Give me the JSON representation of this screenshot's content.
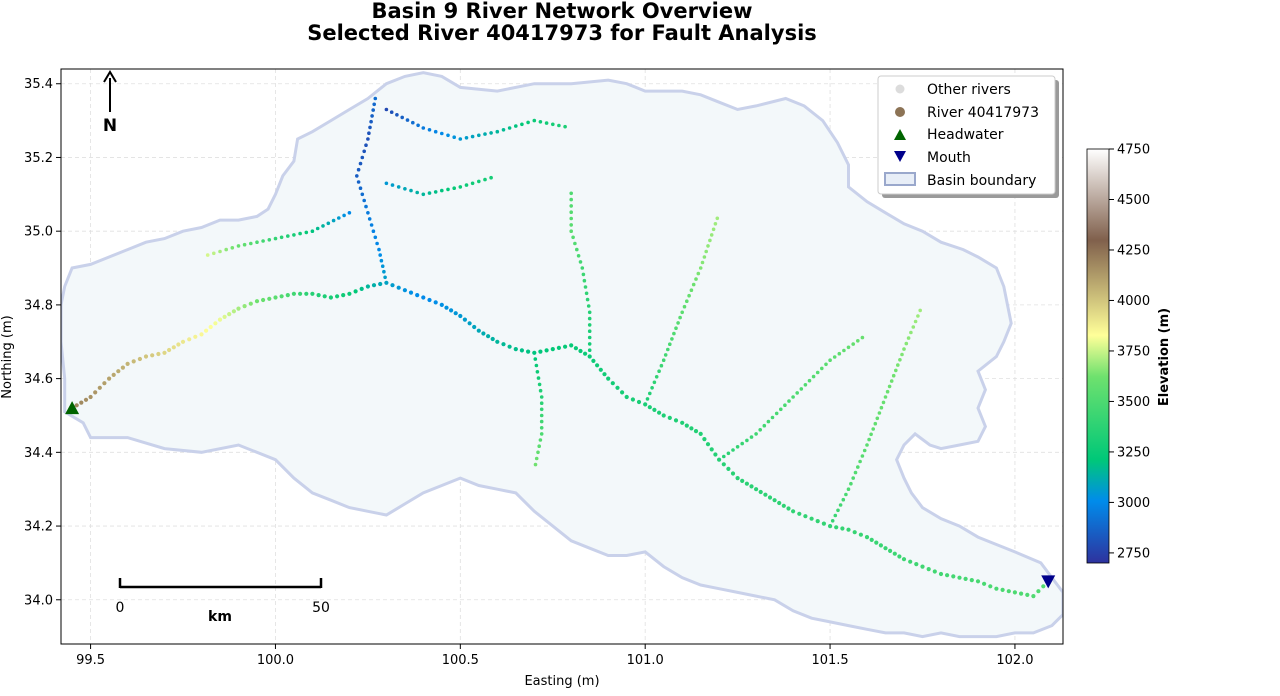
{
  "chart_data": {
    "type": "scatter",
    "title": "Basin 9 River Network Overview",
    "subtitle": "Selected River 40417973 for Fault Analysis",
    "xlabel": "Easting (m)",
    "ylabel": "Northing (m)",
    "xlim": [
      99.42,
      102.13
    ],
    "ylim": [
      33.88,
      35.44
    ],
    "xticks": [
      99.5,
      100.0,
      100.5,
      101.0,
      101.5,
      102.0
    ],
    "xtick_labels": [
      "99.5",
      "100.0",
      "100.5",
      "101.0",
      "101.5",
      "102.0"
    ],
    "yticks": [
      34.0,
      34.2,
      34.4,
      34.6,
      34.8,
      35.0,
      35.2,
      35.4
    ],
    "ytick_labels": [
      "34.0",
      "34.2",
      "34.4",
      "34.6",
      "34.8",
      "35.0",
      "35.2",
      "35.4"
    ],
    "grid": true,
    "legend_position": "top-right",
    "legend": [
      {
        "label": "Other rivers",
        "marker": "circle",
        "color": "#dcdcdc"
      },
      {
        "label": "River 40417973",
        "marker": "circle",
        "color": "#8c7355"
      },
      {
        "label": "Headwater",
        "marker": "triangle-up",
        "color": "#006400"
      },
      {
        "label": "Mouth",
        "marker": "triangle-down",
        "color": "#00008b"
      },
      {
        "label": "Basin boundary",
        "marker": "patch",
        "color": "#e8eef7",
        "edge": "#9aa8cc"
      }
    ],
    "colorbar": {
      "label": "Elevation (m)",
      "range": [
        2700,
        4750
      ],
      "ticks": [
        2750,
        3000,
        3250,
        3500,
        3750,
        4000,
        4250,
        4500,
        4750
      ],
      "tick_labels": [
        "2750",
        "3000",
        "3250",
        "3500",
        "3750",
        "4000",
        "4250",
        "4500",
        "4750"
      ],
      "colormap": "terrain"
    },
    "headwater": {
      "x": 99.45,
      "y": 34.52
    },
    "mouth": {
      "x": 102.09,
      "y": 34.05
    },
    "north_arrow_label": "N",
    "scale_bar": {
      "start_label": "0",
      "end_label": "50",
      "unit_label": "km"
    },
    "basin_boundary": [
      [
        99.43,
        34.51
      ],
      [
        99.48,
        34.48
      ],
      [
        99.5,
        34.44
      ],
      [
        99.6,
        34.44
      ],
      [
        99.7,
        34.41
      ],
      [
        99.8,
        34.4
      ],
      [
        99.9,
        34.42
      ],
      [
        100.0,
        34.38
      ],
      [
        100.05,
        34.33
      ],
      [
        100.1,
        34.29
      ],
      [
        100.15,
        34.27
      ],
      [
        100.2,
        34.25
      ],
      [
        100.25,
        34.24
      ],
      [
        100.3,
        34.23
      ],
      [
        100.35,
        34.26
      ],
      [
        100.4,
        34.29
      ],
      [
        100.45,
        34.31
      ],
      [
        100.5,
        34.33
      ],
      [
        100.55,
        34.31
      ],
      [
        100.6,
        34.3
      ],
      [
        100.65,
        34.29
      ],
      [
        100.7,
        34.24
      ],
      [
        100.75,
        34.2
      ],
      [
        100.8,
        34.16
      ],
      [
        100.85,
        34.14
      ],
      [
        100.9,
        34.12
      ],
      [
        100.95,
        34.12
      ],
      [
        101.0,
        34.13
      ],
      [
        101.05,
        34.09
      ],
      [
        101.1,
        34.06
      ],
      [
        101.15,
        34.04
      ],
      [
        101.2,
        34.03
      ],
      [
        101.25,
        34.02
      ],
      [
        101.3,
        34.01
      ],
      [
        101.35,
        34.0
      ],
      [
        101.4,
        33.97
      ],
      [
        101.45,
        33.95
      ],
      [
        101.5,
        33.94
      ],
      [
        101.55,
        33.93
      ],
      [
        101.6,
        33.92
      ],
      [
        101.65,
        33.91
      ],
      [
        101.7,
        33.91
      ],
      [
        101.75,
        33.9
      ],
      [
        101.8,
        33.91
      ],
      [
        101.85,
        33.9
      ],
      [
        101.9,
        33.9
      ],
      [
        101.95,
        33.9
      ],
      [
        102.0,
        33.91
      ],
      [
        102.05,
        33.91
      ],
      [
        102.1,
        33.93
      ],
      [
        102.13,
        33.96
      ],
      [
        102.13,
        34.02
      ],
      [
        102.1,
        34.06
      ],
      [
        102.07,
        34.1
      ],
      [
        102.0,
        34.13
      ],
      [
        101.95,
        34.15
      ],
      [
        101.9,
        34.17
      ],
      [
        101.85,
        34.2
      ],
      [
        101.8,
        34.22
      ],
      [
        101.75,
        34.25
      ],
      [
        101.72,
        34.29
      ],
      [
        101.7,
        34.33
      ],
      [
        101.68,
        34.38
      ],
      [
        101.7,
        34.42
      ],
      [
        101.73,
        34.45
      ],
      [
        101.77,
        34.42
      ],
      [
        101.8,
        34.41
      ],
      [
        101.85,
        34.42
      ],
      [
        101.9,
        34.43
      ],
      [
        101.92,
        34.47
      ],
      [
        101.9,
        34.52
      ],
      [
        101.92,
        34.57
      ],
      [
        101.9,
        34.62
      ],
      [
        101.95,
        34.66
      ],
      [
        101.97,
        34.7
      ],
      [
        101.99,
        34.75
      ],
      [
        101.98,
        34.8
      ],
      [
        101.97,
        34.85
      ],
      [
        101.95,
        34.9
      ],
      [
        101.9,
        34.93
      ],
      [
        101.86,
        34.95
      ],
      [
        101.8,
        34.97
      ],
      [
        101.75,
        35.0
      ],
      [
        101.7,
        35.02
      ],
      [
        101.65,
        35.05
      ],
      [
        101.6,
        35.08
      ],
      [
        101.55,
        35.12
      ],
      [
        101.55,
        35.18
      ],
      [
        101.52,
        35.24
      ],
      [
        101.48,
        35.3
      ],
      [
        101.43,
        35.34
      ],
      [
        101.38,
        35.36
      ],
      [
        101.3,
        35.34
      ],
      [
        101.25,
        35.33
      ],
      [
        101.2,
        35.35
      ],
      [
        101.15,
        35.37
      ],
      [
        101.1,
        35.38
      ],
      [
        101.0,
        35.38
      ],
      [
        100.95,
        35.4
      ],
      [
        100.9,
        35.41
      ],
      [
        100.8,
        35.4
      ],
      [
        100.7,
        35.4
      ],
      [
        100.6,
        35.38
      ],
      [
        100.5,
        35.39
      ],
      [
        100.45,
        35.42
      ],
      [
        100.4,
        35.43
      ],
      [
        100.35,
        35.42
      ],
      [
        100.3,
        35.4
      ],
      [
        100.25,
        35.36
      ],
      [
        100.2,
        35.33
      ],
      [
        100.15,
        35.3
      ],
      [
        100.1,
        35.27
      ],
      [
        100.06,
        35.25
      ],
      [
        100.05,
        35.19
      ],
      [
        100.02,
        35.15
      ],
      [
        100.0,
        35.1
      ],
      [
        99.98,
        35.06
      ],
      [
        99.95,
        35.04
      ],
      [
        99.9,
        35.03
      ],
      [
        99.85,
        35.03
      ],
      [
        99.8,
        35.01
      ],
      [
        99.75,
        35.0
      ],
      [
        99.7,
        34.98
      ],
      [
        99.65,
        34.97
      ],
      [
        99.6,
        34.95
      ],
      [
        99.55,
        34.93
      ],
      [
        99.5,
        34.91
      ],
      [
        99.45,
        34.9
      ],
      [
        99.43,
        34.85
      ],
      [
        99.42,
        34.8
      ],
      [
        99.42,
        34.7
      ],
      [
        99.43,
        34.6
      ]
    ],
    "selected_river": [
      {
        "x": 99.45,
        "y": 34.52,
        "z": 4200
      },
      {
        "x": 99.5,
        "y": 34.55,
        "z": 4150
      },
      {
        "x": 99.55,
        "y": 34.6,
        "z": 4100
      },
      {
        "x": 99.6,
        "y": 34.64,
        "z": 4050
      },
      {
        "x": 99.65,
        "y": 34.66,
        "z": 4000
      },
      {
        "x": 99.7,
        "y": 34.67,
        "z": 3950
      },
      {
        "x": 99.75,
        "y": 34.7,
        "z": 3900
      },
      {
        "x": 99.8,
        "y": 34.72,
        "z": 3850
      },
      {
        "x": 99.85,
        "y": 34.76,
        "z": 3800
      },
      {
        "x": 99.9,
        "y": 34.79,
        "z": 3700
      },
      {
        "x": 99.95,
        "y": 34.81,
        "z": 3620
      },
      {
        "x": 100.0,
        "y": 34.82,
        "z": 3550
      },
      {
        "x": 100.05,
        "y": 34.83,
        "z": 3450
      },
      {
        "x": 100.1,
        "y": 34.83,
        "z": 3350
      },
      {
        "x": 100.15,
        "y": 34.82,
        "z": 3300
      },
      {
        "x": 100.2,
        "y": 34.83,
        "z": 3250
      },
      {
        "x": 100.25,
        "y": 34.85,
        "z": 3150
      },
      {
        "x": 100.3,
        "y": 34.86,
        "z": 3080
      },
      {
        "x": 100.35,
        "y": 34.84,
        "z": 3030
      },
      {
        "x": 100.4,
        "y": 34.82,
        "z": 3000
      },
      {
        "x": 100.45,
        "y": 34.8,
        "z": 3020
      },
      {
        "x": 100.5,
        "y": 34.77,
        "z": 3050
      },
      {
        "x": 100.55,
        "y": 34.73,
        "z": 3100
      },
      {
        "x": 100.6,
        "y": 34.7,
        "z": 3150
      },
      {
        "x": 100.65,
        "y": 34.68,
        "z": 3180
      },
      {
        "x": 100.7,
        "y": 34.67,
        "z": 3200
      },
      {
        "x": 100.75,
        "y": 34.68,
        "z": 3220
      },
      {
        "x": 100.8,
        "y": 34.69,
        "z": 3240
      },
      {
        "x": 100.85,
        "y": 34.66,
        "z": 3260
      },
      {
        "x": 100.9,
        "y": 34.6,
        "z": 3280
      },
      {
        "x": 100.95,
        "y": 34.55,
        "z": 3300
      },
      {
        "x": 101.0,
        "y": 34.53,
        "z": 3310
      },
      {
        "x": 101.05,
        "y": 34.5,
        "z": 3320
      },
      {
        "x": 101.1,
        "y": 34.48,
        "z": 3330
      },
      {
        "x": 101.15,
        "y": 34.45,
        "z": 3340
      },
      {
        "x": 101.2,
        "y": 34.38,
        "z": 3350
      },
      {
        "x": 101.25,
        "y": 34.33,
        "z": 3360
      },
      {
        "x": 101.3,
        "y": 34.3,
        "z": 3370
      },
      {
        "x": 101.35,
        "y": 34.27,
        "z": 3380
      },
      {
        "x": 101.4,
        "y": 34.24,
        "z": 3390
      },
      {
        "x": 101.45,
        "y": 34.22,
        "z": 3400
      },
      {
        "x": 101.5,
        "y": 34.2,
        "z": 3400
      },
      {
        "x": 101.55,
        "y": 34.19,
        "z": 3410
      },
      {
        "x": 101.6,
        "y": 34.17,
        "z": 3420
      },
      {
        "x": 101.65,
        "y": 34.14,
        "z": 3430
      },
      {
        "x": 101.7,
        "y": 34.11,
        "z": 3440
      },
      {
        "x": 101.75,
        "y": 34.09,
        "z": 3450
      },
      {
        "x": 101.8,
        "y": 34.07,
        "z": 3460
      },
      {
        "x": 101.85,
        "y": 34.06,
        "z": 3470
      },
      {
        "x": 101.9,
        "y": 34.05,
        "z": 3480
      },
      {
        "x": 101.95,
        "y": 34.03,
        "z": 3490
      },
      {
        "x": 102.0,
        "y": 34.02,
        "z": 3500
      },
      {
        "x": 102.05,
        "y": 34.01,
        "z": 3510
      },
      {
        "x": 102.09,
        "y": 34.05,
        "z": 3520
      }
    ],
    "tributaries": [
      [
        {
          "x": 100.27,
          "y": 35.36,
          "z": 2900
        },
        {
          "x": 100.25,
          "y": 35.25,
          "z": 2800
        },
        {
          "x": 100.22,
          "y": 35.15,
          "z": 2850
        },
        {
          "x": 100.25,
          "y": 35.05,
          "z": 2950
        },
        {
          "x": 100.28,
          "y": 34.95,
          "z": 3000
        },
        {
          "x": 100.3,
          "y": 34.86,
          "z": 3080
        }
      ],
      [
        {
          "x": 100.3,
          "y": 35.33,
          "z": 2780
        },
        {
          "x": 100.4,
          "y": 35.28,
          "z": 2950
        },
        {
          "x": 100.5,
          "y": 35.25,
          "z": 3050
        },
        {
          "x": 100.6,
          "y": 35.27,
          "z": 3150
        },
        {
          "x": 100.7,
          "y": 35.3,
          "z": 3250
        },
        {
          "x": 100.8,
          "y": 35.28,
          "z": 3330
        }
      ],
      [
        {
          "x": 100.2,
          "y": 35.05,
          "z": 3000
        },
        {
          "x": 100.1,
          "y": 35.0,
          "z": 3200
        },
        {
          "x": 100.0,
          "y": 34.98,
          "z": 3400
        },
        {
          "x": 99.9,
          "y": 34.96,
          "z": 3600
        },
        {
          "x": 99.8,
          "y": 34.93,
          "z": 3800
        }
      ],
      [
        {
          "x": 100.3,
          "y": 35.13,
          "z": 3050
        },
        {
          "x": 100.4,
          "y": 35.1,
          "z": 3150
        },
        {
          "x": 100.5,
          "y": 35.12,
          "z": 3250
        },
        {
          "x": 100.6,
          "y": 35.15,
          "z": 3300
        }
      ],
      [
        {
          "x": 100.7,
          "y": 34.67,
          "z": 3200
        },
        {
          "x": 100.72,
          "y": 34.55,
          "z": 3350
        },
        {
          "x": 100.72,
          "y": 34.45,
          "z": 3500
        },
        {
          "x": 100.7,
          "y": 34.35,
          "z": 3650
        }
      ],
      [
        {
          "x": 100.85,
          "y": 34.66,
          "z": 3260
        },
        {
          "x": 100.85,
          "y": 34.78,
          "z": 3350
        },
        {
          "x": 100.83,
          "y": 34.9,
          "z": 3450
        },
        {
          "x": 100.8,
          "y": 35.0,
          "z": 3550
        },
        {
          "x": 100.8,
          "y": 35.12,
          "z": 3500
        }
      ],
      [
        {
          "x": 101.2,
          "y": 34.38,
          "z": 3350
        },
        {
          "x": 101.3,
          "y": 34.45,
          "z": 3450
        },
        {
          "x": 101.4,
          "y": 34.55,
          "z": 3500
        },
        {
          "x": 101.5,
          "y": 34.65,
          "z": 3550
        },
        {
          "x": 101.6,
          "y": 34.72,
          "z": 3600
        }
      ],
      [
        {
          "x": 101.0,
          "y": 34.53,
          "z": 3310
        },
        {
          "x": 101.05,
          "y": 34.65,
          "z": 3450
        },
        {
          "x": 101.1,
          "y": 34.78,
          "z": 3550
        },
        {
          "x": 101.15,
          "y": 34.9,
          "z": 3650
        },
        {
          "x": 101.2,
          "y": 35.05,
          "z": 3700
        }
      ],
      [
        {
          "x": 101.5,
          "y": 34.2,
          "z": 3400
        },
        {
          "x": 101.55,
          "y": 34.3,
          "z": 3500
        },
        {
          "x": 101.6,
          "y": 34.42,
          "z": 3550
        },
        {
          "x": 101.65,
          "y": 34.55,
          "z": 3600
        },
        {
          "x": 101.7,
          "y": 34.68,
          "z": 3650
        },
        {
          "x": 101.75,
          "y": 34.8,
          "z": 3700
        }
      ]
    ]
  }
}
